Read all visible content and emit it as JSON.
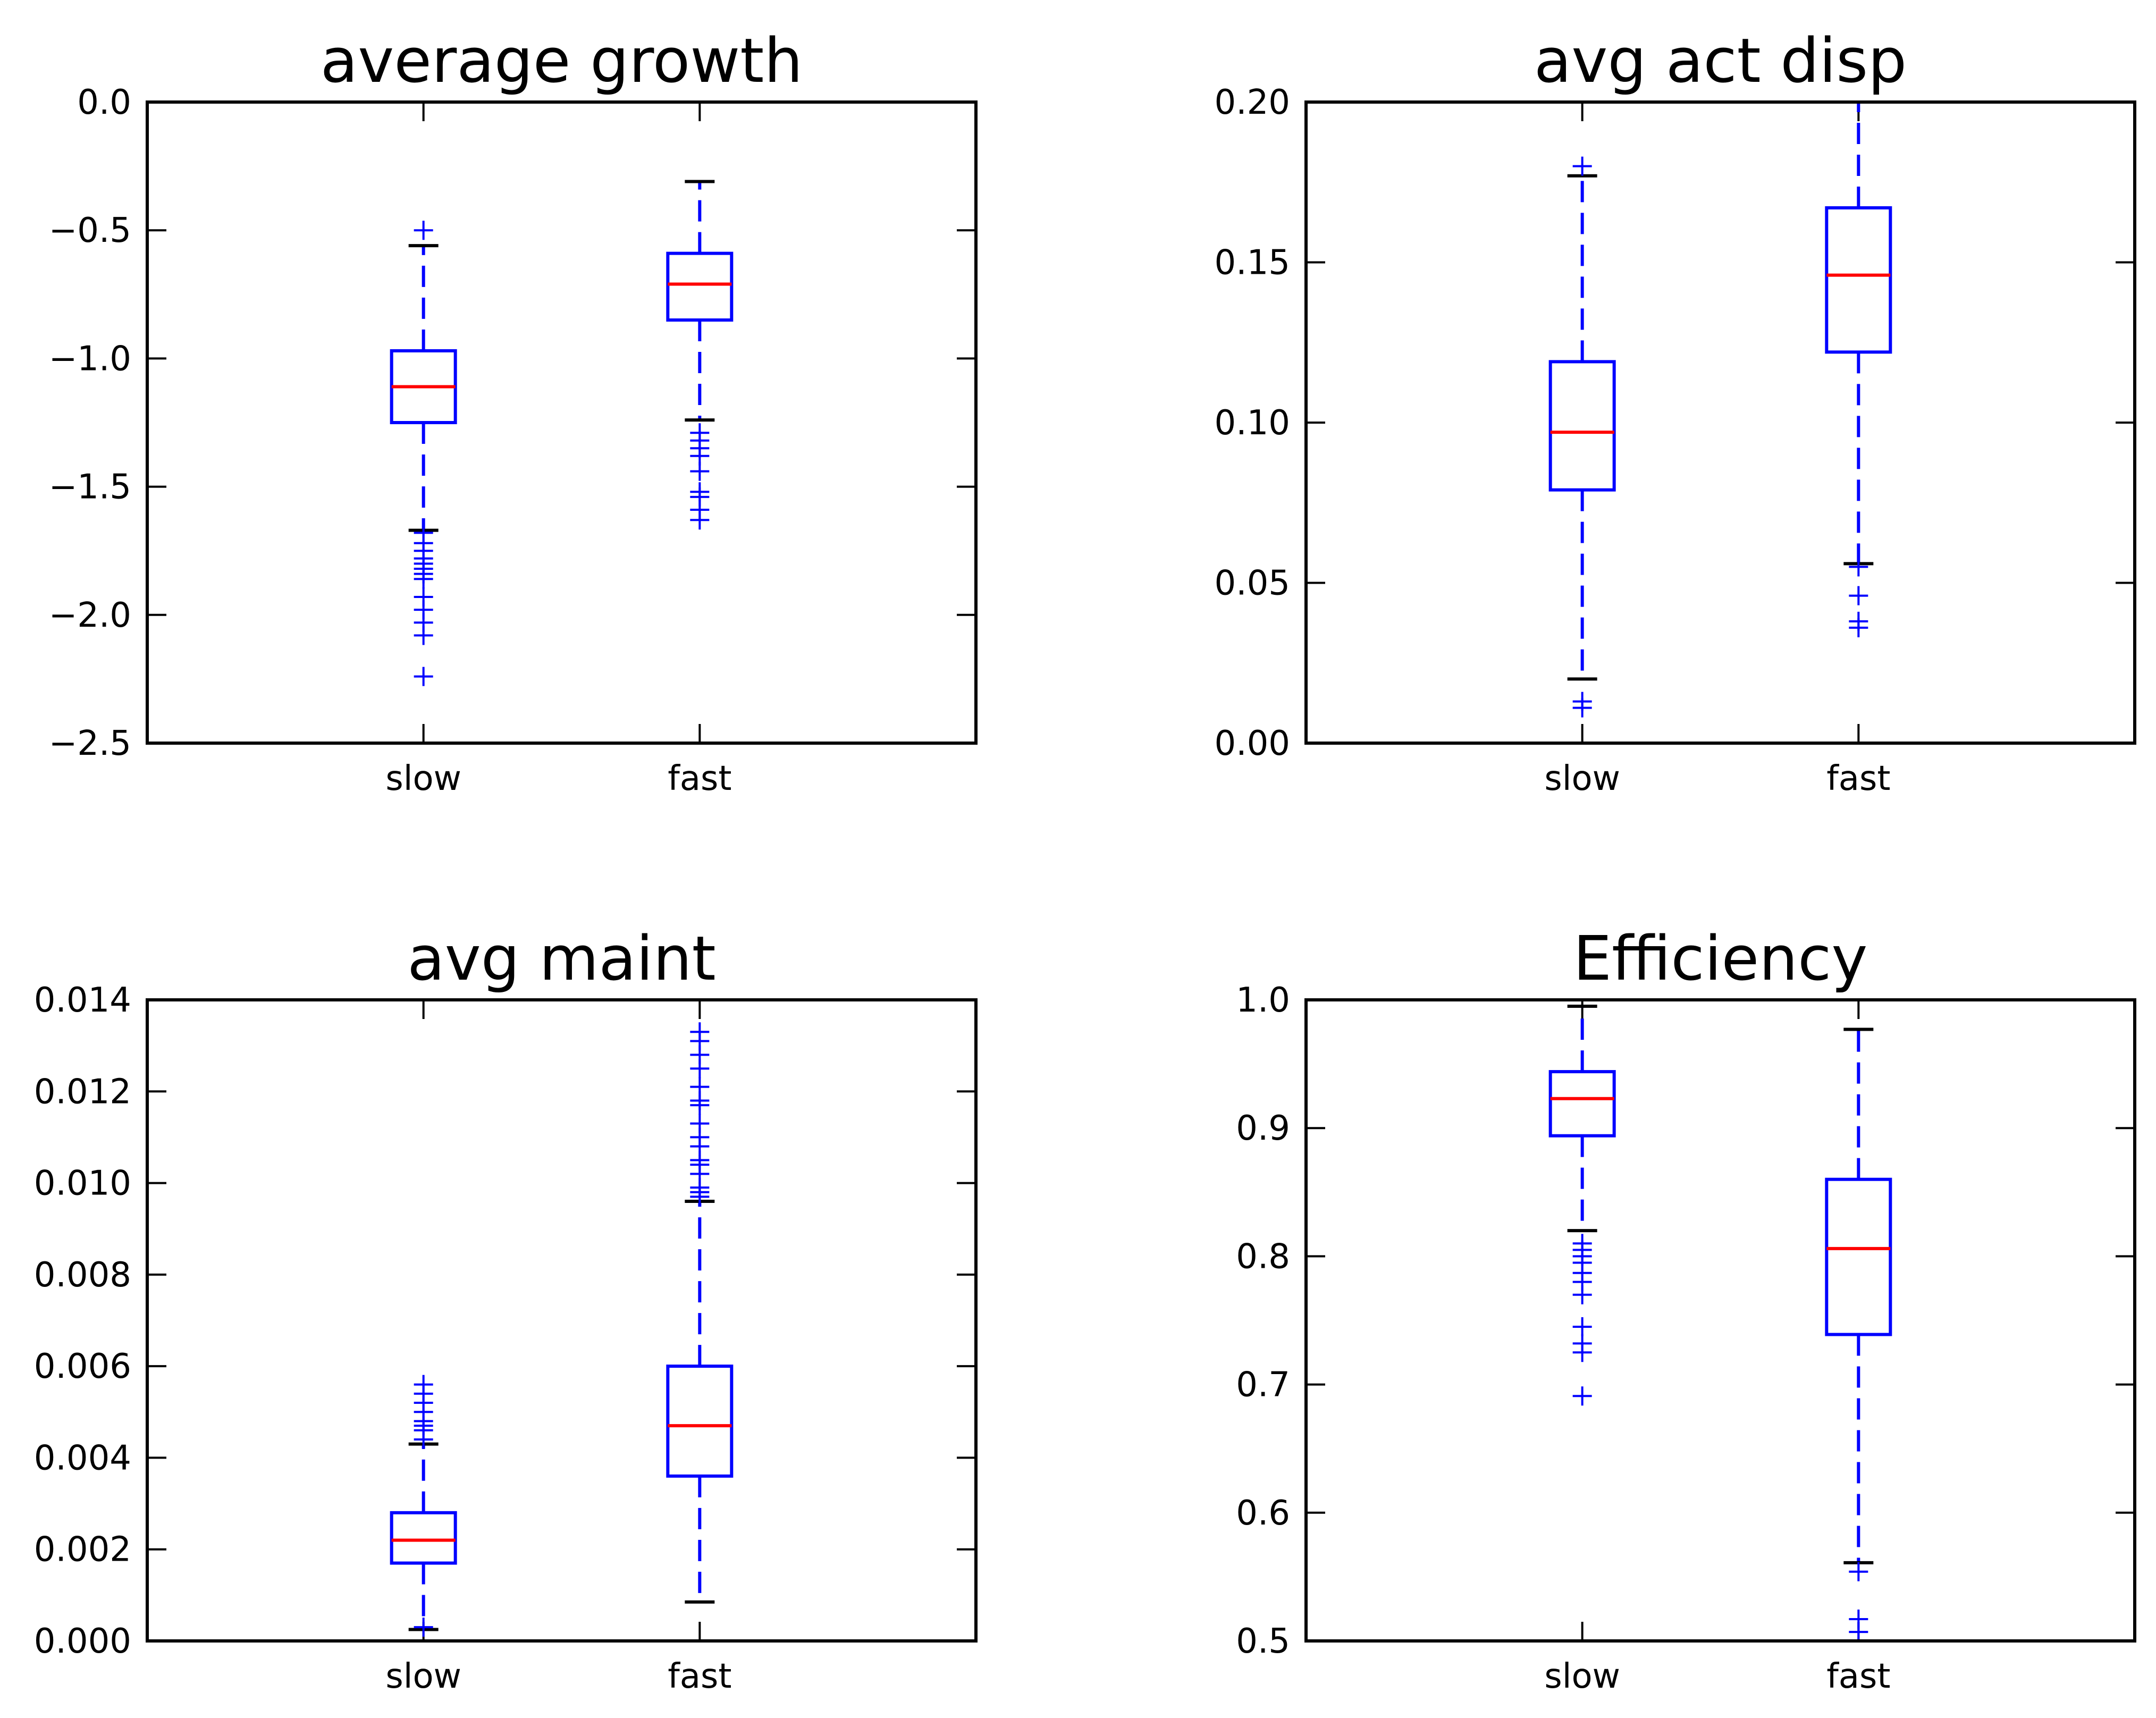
{
  "chart_data": [
    {
      "type": "box",
      "title": "average growth",
      "categories": [
        "slow",
        "fast"
      ],
      "ylim": [
        -2.5,
        0.0
      ],
      "yticks": [
        0.0,
        -0.5,
        -1.0,
        -1.5,
        -2.0,
        -2.5
      ],
      "ytick_labels": [
        "0.0",
        "−0.5",
        "−1.0",
        "−1.5",
        "−2.0",
        "−2.5"
      ],
      "boxes": [
        {
          "name": "slow",
          "whislo": -1.67,
          "q1": -1.25,
          "med": -1.11,
          "q3": -0.97,
          "whishi": -0.56,
          "fliers": [
            -0.5,
            -1.68,
            -1.72,
            -1.75,
            -1.78,
            -1.8,
            -1.82,
            -1.84,
            -1.86,
            -1.93,
            -1.98,
            -2.03,
            -2.08,
            -2.24
          ]
        },
        {
          "name": "fast",
          "whislo": -1.24,
          "q1": -0.85,
          "med": -0.71,
          "q3": -0.59,
          "whishi": -0.31,
          "fliers": [
            -1.29,
            -1.32,
            -1.35,
            -1.38,
            -1.44,
            -1.52,
            -1.54,
            -1.59,
            -1.63
          ]
        }
      ]
    },
    {
      "type": "box",
      "title": "avg act disp",
      "categories": [
        "slow",
        "fast"
      ],
      "ylim": [
        0.0,
        0.2
      ],
      "yticks": [
        0.0,
        0.05,
        0.1,
        0.15,
        0.2
      ],
      "ytick_labels": [
        "0.00",
        "0.05",
        "0.10",
        "0.15",
        "0.20"
      ],
      "boxes": [
        {
          "name": "slow",
          "whislo": 0.02,
          "q1": 0.079,
          "med": 0.097,
          "q3": 0.119,
          "whishi": 0.177,
          "fliers": [
            0.18,
            0.013,
            0.011
          ]
        },
        {
          "name": "fast",
          "whislo": 0.056,
          "q1": 0.122,
          "med": 0.146,
          "q3": 0.167,
          "whishi": 0.2,
          "fliers": [
            0.055,
            0.046,
            0.038,
            0.036
          ]
        }
      ]
    },
    {
      "type": "box",
      "title": "avg maint",
      "categories": [
        "slow",
        "fast"
      ],
      "ylim": [
        0.0,
        0.014
      ],
      "yticks": [
        0.0,
        0.002,
        0.004,
        0.006,
        0.008,
        0.01,
        0.012,
        0.014
      ],
      "ytick_labels": [
        "0.000",
        "0.002",
        "0.004",
        "0.006",
        "0.008",
        "0.010",
        "0.012",
        "0.014"
      ],
      "boxes": [
        {
          "name": "slow",
          "whislo": 0.00025,
          "q1": 0.0017,
          "med": 0.0022,
          "q3": 0.0028,
          "whishi": 0.0043,
          "fliers": [
            0.0044,
            0.0046,
            0.0047,
            0.0048,
            0.005,
            0.0052,
            0.0054,
            0.0056,
            0.0003
          ]
        },
        {
          "name": "fast",
          "whislo": 0.00085,
          "q1": 0.0036,
          "med": 0.0047,
          "q3": 0.006,
          "whishi": 0.0096,
          "fliers": [
            0.0097,
            0.0098,
            0.0099,
            0.0102,
            0.0104,
            0.0105,
            0.0108,
            0.011,
            0.0113,
            0.0117,
            0.0118,
            0.0121,
            0.0125,
            0.0128,
            0.0131,
            0.0133
          ]
        }
      ]
    },
    {
      "type": "box",
      "title": "Efficiency",
      "categories": [
        "slow",
        "fast"
      ],
      "ylim": [
        0.5,
        1.0
      ],
      "yticks": [
        0.5,
        0.6,
        0.7,
        0.8,
        0.9,
        1.0
      ],
      "ytick_labels": [
        "0.5",
        "0.6",
        "0.7",
        "0.8",
        "0.9",
        "1.0"
      ],
      "boxes": [
        {
          "name": "slow",
          "whislo": 0.82,
          "q1": 0.894,
          "med": 0.923,
          "q3": 0.944,
          "whishi": 0.995,
          "fliers": [
            0.81,
            0.805,
            0.8,
            0.795,
            0.787,
            0.78,
            0.77,
            0.745,
            0.732,
            0.725,
            0.691
          ]
        },
        {
          "name": "fast",
          "whislo": 0.561,
          "q1": 0.739,
          "med": 0.806,
          "q3": 0.86,
          "whishi": 0.977,
          "fliers": [
            0.554,
            0.517,
            0.507
          ]
        }
      ]
    }
  ]
}
